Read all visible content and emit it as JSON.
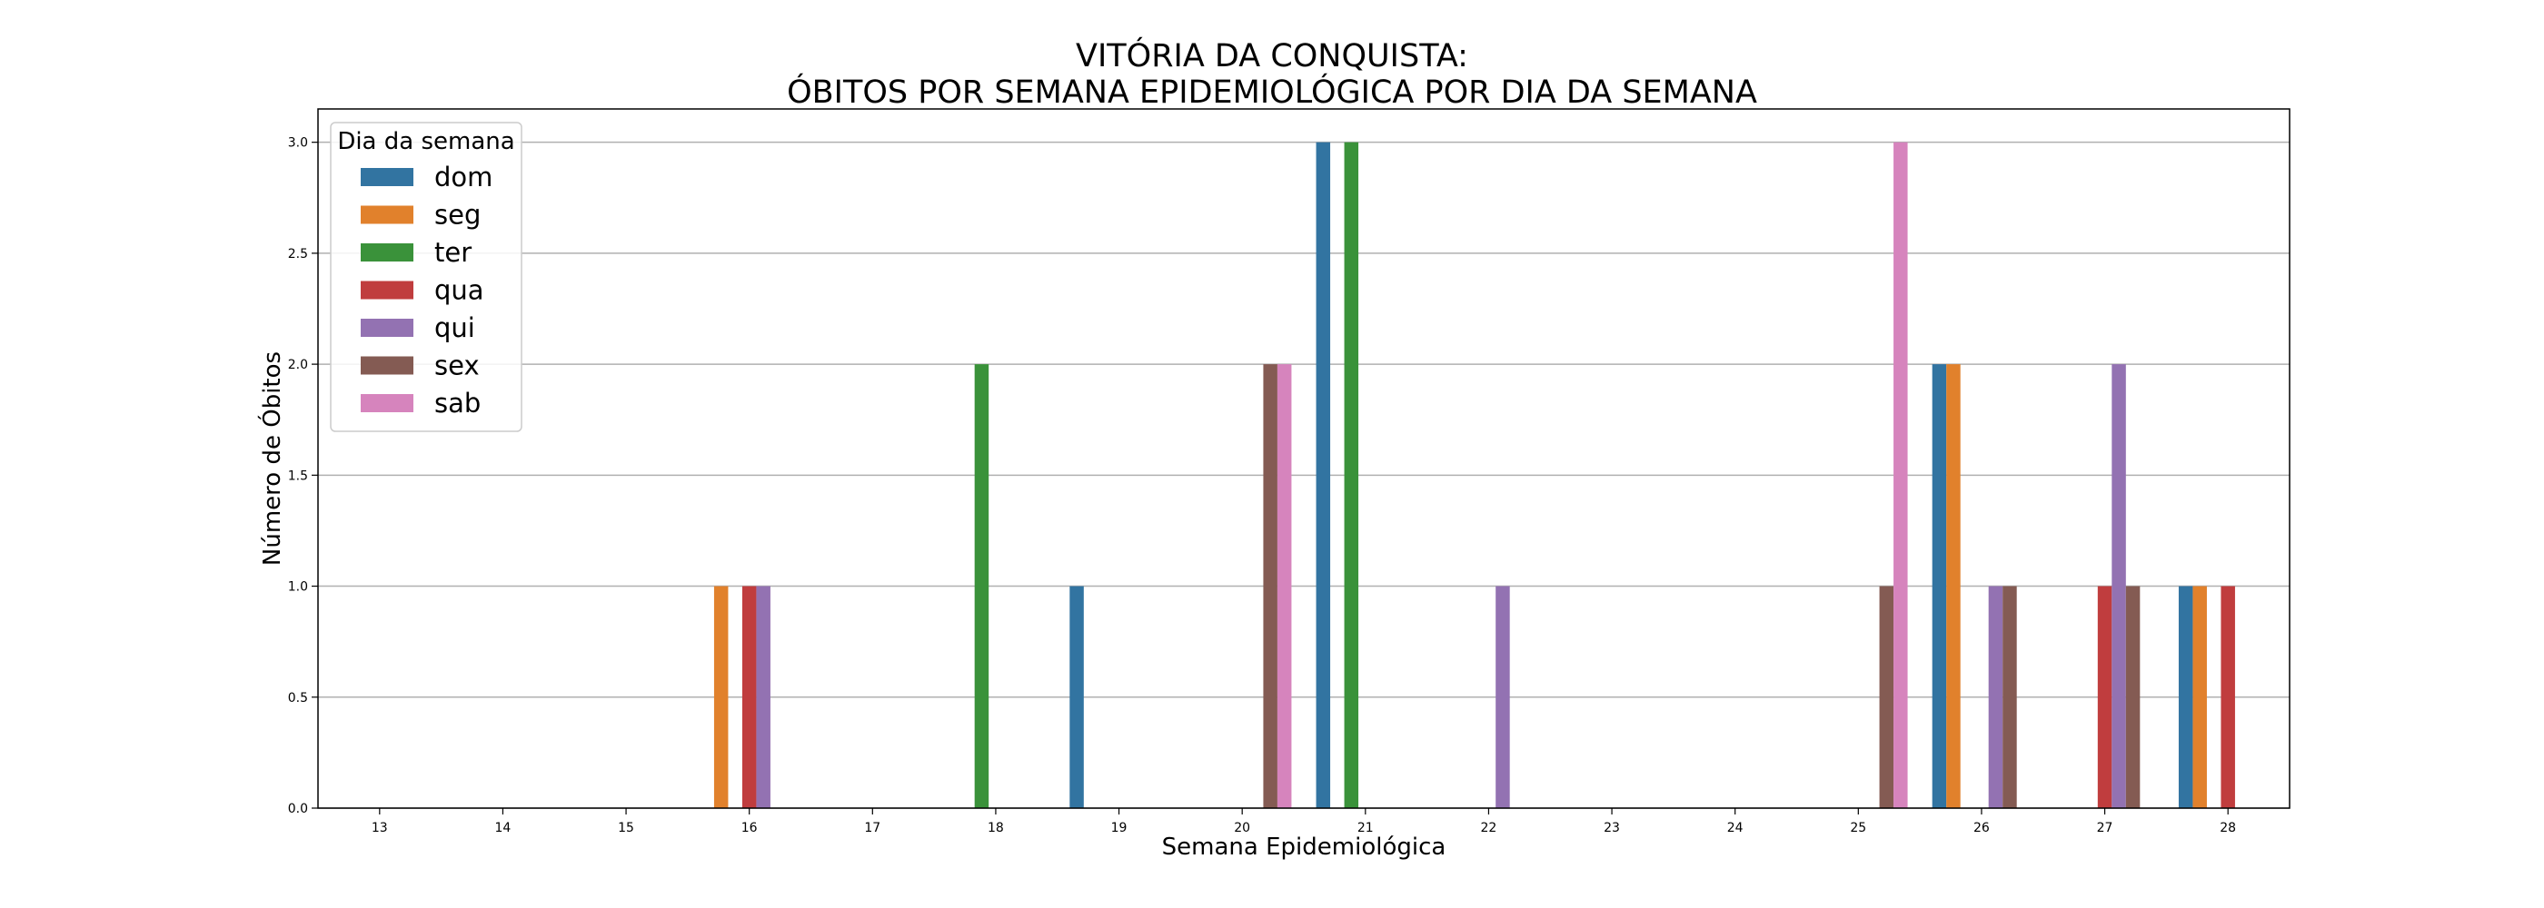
{
  "chart_data": {
    "type": "bar",
    "title": [
      "VITÓRIA DA CONQUISTA:",
      "ÓBITOS POR SEMANA EPIDEMIOLÓGICA POR DIA DA SEMANA"
    ],
    "xlabel": "Semana Epidemiológica",
    "ylabel": "Número de Óbitos",
    "categories": [
      "13",
      "14",
      "15",
      "16",
      "17",
      "18",
      "19",
      "20",
      "21",
      "22",
      "23",
      "24",
      "25",
      "26",
      "27",
      "28"
    ],
    "yticks": [
      "0.0",
      "0.5",
      "1.0",
      "1.5",
      "2.0",
      "2.5",
      "3.0"
    ],
    "ylim": [
      0,
      3.15
    ],
    "grid": "horizontal",
    "legend": {
      "title": "Dia da semana",
      "placement": "top-left"
    },
    "series": [
      {
        "name": "dom",
        "color": "#3274a1",
        "values": [
          0,
          0,
          0,
          0,
          0,
          0,
          1,
          0,
          3,
          0,
          0,
          0,
          0,
          2,
          0,
          1
        ]
      },
      {
        "name": "seg",
        "color": "#e1812c",
        "values": [
          0,
          0,
          0,
          1,
          0,
          0,
          0,
          0,
          0,
          0,
          0,
          0,
          0,
          2,
          0,
          1
        ]
      },
      {
        "name": "ter",
        "color": "#3a923a",
        "values": [
          0,
          0,
          0,
          0,
          0,
          2,
          0,
          0,
          3,
          0,
          0,
          0,
          0,
          0,
          0,
          0
        ]
      },
      {
        "name": "qua",
        "color": "#c03d3e",
        "values": [
          0,
          0,
          0,
          1,
          0,
          0,
          0,
          0,
          0,
          0,
          0,
          0,
          0,
          0,
          1,
          1
        ]
      },
      {
        "name": "qui",
        "color": "#9372b2",
        "values": [
          0,
          0,
          0,
          1,
          0,
          0,
          0,
          0,
          0,
          1,
          0,
          0,
          0,
          1,
          2,
          0
        ]
      },
      {
        "name": "sex",
        "color": "#845b53",
        "values": [
          0,
          0,
          0,
          0,
          0,
          0,
          0,
          2,
          0,
          0,
          0,
          0,
          1,
          1,
          1,
          0
        ]
      },
      {
        "name": "sab",
        "color": "#d684bd",
        "values": [
          0,
          0,
          0,
          0,
          0,
          0,
          0,
          2,
          0,
          0,
          0,
          0,
          3,
          0,
          0,
          0
        ]
      }
    ]
  }
}
